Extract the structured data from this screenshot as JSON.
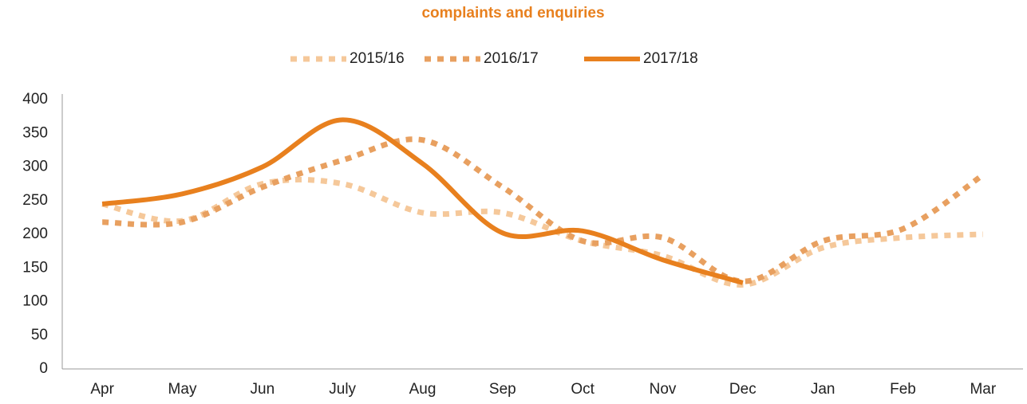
{
  "chart_data": {
    "type": "line",
    "title": "complaints and enquiries",
    "title_color": "#e8801e",
    "categories": [
      "Apr",
      "May",
      "Jun",
      "July",
      "Aug",
      "Sep",
      "Oct",
      "Nov",
      "Dec",
      "Jan",
      "Feb",
      "Mar"
    ],
    "series": [
      {
        "name": "2015/16",
        "color": "#f5c89a",
        "line_style": "dotted",
        "values": [
          245,
          220,
          275,
          275,
          232,
          232,
          190,
          168,
          125,
          180,
          195,
          200
        ]
      },
      {
        "name": "2016/17",
        "color": "#e8a060",
        "line_style": "dotted",
        "values": [
          218,
          218,
          270,
          310,
          340,
          270,
          190,
          195,
          130,
          190,
          208,
          288
        ]
      },
      {
        "name": "2017/18",
        "color": "#e8801e",
        "line_style": "solid",
        "values": [
          245,
          260,
          300,
          370,
          305,
          202,
          205,
          162,
          128,
          null,
          null,
          null
        ]
      }
    ],
    "ylim": [
      0,
      400
    ],
    "yticks": [
      0,
      50,
      100,
      150,
      200,
      250,
      300,
      350,
      400
    ],
    "grid": false,
    "smooth": true,
    "legend": "top"
  }
}
